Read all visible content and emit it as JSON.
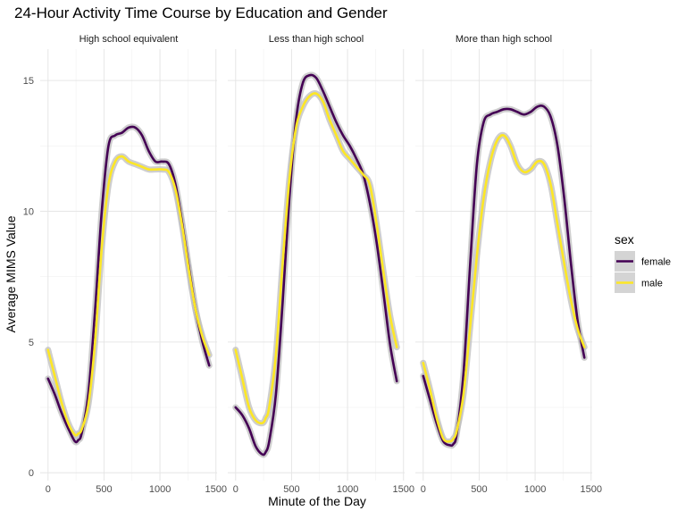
{
  "chart_data": {
    "type": "line",
    "title": "24-Hour Activity Time Course by Education and Gender",
    "xlabel": "Minute of the Day",
    "ylabel": "Average MIMS Value",
    "xlim": [
      0,
      1440
    ],
    "ylim": [
      0,
      16
    ],
    "x_ticks": [
      0,
      500,
      1000,
      1500
    ],
    "y_ticks": [
      0,
      5,
      10,
      15
    ],
    "legend": {
      "title": "sex",
      "position": "right",
      "entries": [
        {
          "name": "female",
          "color": "#440154"
        },
        {
          "name": "male",
          "color": "#FDE725"
        }
      ]
    },
    "band_color": "#bdbdbd",
    "grid": true,
    "facets": [
      {
        "label": "High school equivalent",
        "series": [
          {
            "name": "female",
            "x": [
              0,
              60,
              120,
              180,
              240,
              270,
              300,
              360,
              420,
              480,
              540,
              600,
              660,
              720,
              780,
              840,
              900,
              960,
              1020,
              1080,
              1140,
              1200,
              1260,
              1320,
              1380,
              1440
            ],
            "y": [
              3.6,
              3.0,
              2.3,
              1.7,
              1.2,
              1.25,
              1.5,
              3.0,
              6.2,
              10.0,
              12.5,
              12.9,
              13.0,
              13.2,
              13.2,
              12.9,
              12.3,
              11.9,
              11.9,
              11.8,
              11.0,
              9.5,
              7.8,
              6.2,
              5.0,
              4.1
            ]
          },
          {
            "name": "male",
            "x": [
              0,
              60,
              120,
              180,
              240,
              270,
              300,
              360,
              420,
              480,
              540,
              600,
              660,
              720,
              780,
              840,
              900,
              960,
              1020,
              1080,
              1140,
              1200,
              1260,
              1320,
              1380,
              1440
            ],
            "y": [
              4.7,
              3.7,
              2.7,
              1.9,
              1.45,
              1.5,
              1.65,
              2.6,
              5.0,
              8.6,
              11.0,
              11.9,
              12.1,
              11.9,
              11.8,
              11.7,
              11.6,
              11.6,
              11.6,
              11.5,
              10.8,
              9.4,
              7.7,
              6.2,
              5.2,
              4.5
            ]
          }
        ]
      },
      {
        "label": "Less than high school",
        "series": [
          {
            "name": "female",
            "x": [
              0,
              60,
              120,
              180,
              240,
              270,
              300,
              360,
              420,
              480,
              540,
              600,
              660,
              720,
              780,
              840,
              900,
              960,
              1020,
              1080,
              1140,
              1200,
              1260,
              1320,
              1380,
              1440
            ],
            "y": [
              2.5,
              2.2,
              1.7,
              1.0,
              0.7,
              0.8,
              1.2,
              3.0,
              6.5,
              10.5,
              13.5,
              14.9,
              15.2,
              15.1,
              14.6,
              14.0,
              13.4,
              12.9,
              12.5,
              12.0,
              11.4,
              10.3,
              8.8,
              6.9,
              4.9,
              3.5
            ]
          },
          {
            "name": "male",
            "x": [
              0,
              60,
              120,
              180,
              240,
              270,
              300,
              360,
              420,
              480,
              540,
              600,
              660,
              720,
              780,
              840,
              900,
              960,
              1020,
              1080,
              1140,
              1200,
              1260,
              1320,
              1380,
              1440
            ],
            "y": [
              4.7,
              3.6,
              2.5,
              2.0,
              1.9,
              2.1,
              2.5,
              4.5,
              8.0,
              11.2,
              13.2,
              14.0,
              14.4,
              14.5,
              14.2,
              13.5,
              12.9,
              12.3,
              12.0,
              11.7,
              11.4,
              11.0,
              9.5,
              7.7,
              6.0,
              4.8
            ]
          }
        ]
      },
      {
        "label": "More than high school",
        "series": [
          {
            "name": "female",
            "x": [
              0,
              60,
              120,
              180,
              240,
              270,
              300,
              360,
              420,
              480,
              540,
              600,
              660,
              720,
              780,
              840,
              900,
              960,
              1020,
              1080,
              1140,
              1200,
              1260,
              1320,
              1380,
              1440
            ],
            "y": [
              3.7,
              2.8,
              1.9,
              1.2,
              1.05,
              1.1,
              1.5,
              3.8,
              8.0,
              11.8,
              13.4,
              13.7,
              13.8,
              13.9,
              13.9,
              13.8,
              13.7,
              13.8,
              14.0,
              14.0,
              13.6,
              12.5,
              10.5,
              8.0,
              5.8,
              4.4
            ]
          },
          {
            "name": "male",
            "x": [
              0,
              60,
              120,
              180,
              240,
              270,
              300,
              360,
              420,
              480,
              540,
              600,
              660,
              720,
              780,
              840,
              900,
              960,
              1020,
              1080,
              1140,
              1200,
              1260,
              1320,
              1380,
              1440
            ],
            "y": [
              4.2,
              3.2,
              2.1,
              1.3,
              1.2,
              1.3,
              1.6,
              3.0,
              5.6,
              8.3,
              10.5,
              11.9,
              12.7,
              12.9,
              12.5,
              11.8,
              11.5,
              11.6,
              11.9,
              11.8,
              11.0,
              9.5,
              8.0,
              6.6,
              5.5,
              4.8
            ]
          }
        ]
      }
    ]
  }
}
